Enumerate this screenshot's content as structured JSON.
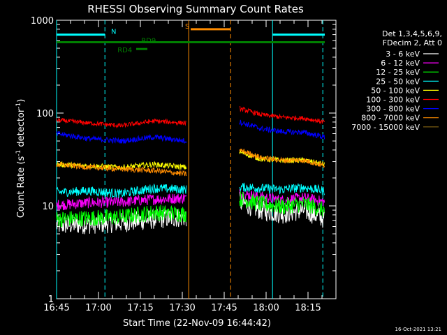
{
  "chart_data": {
    "type": "line",
    "title": "RHESSI Observing Summary Count Rates",
    "xlabel": "Start Time (22-Nov-09 16:44:42)",
    "ylabel": "Count Rate (s⁻¹ detector⁻¹)",
    "ylabel_parts": {
      "main": "Count Rate (s",
      "sup1": "-1",
      "mid": " detector",
      "sup2": "-1",
      "end": ")"
    },
    "y_scale": "log",
    "ylim": [
      1,
      1000
    ],
    "xlim_minutes": [
      0,
      100
    ],
    "y_ticks": [
      {
        "value": 1,
        "label": "1"
      },
      {
        "value": 10,
        "label": "10"
      },
      {
        "value": 100,
        "label": "100"
      },
      {
        "value": 1000,
        "label": "1000"
      }
    ],
    "x_ticks": [
      {
        "minutes": 0,
        "label": "16:45"
      },
      {
        "minutes": 15,
        "label": "17:00"
      },
      {
        "minutes": 30,
        "label": "17:15"
      },
      {
        "minutes": 45,
        "label": "17:30"
      },
      {
        "minutes": 60,
        "label": "17:45"
      },
      {
        "minutes": 75,
        "label": "18:00"
      },
      {
        "minutes": 90,
        "label": "18:15"
      }
    ],
    "legend_header": [
      "Det 1,3,4,5,6,9,",
      "FDecim 2, Att 0"
    ],
    "series": [
      {
        "name": "3 - 6 keV",
        "color": "#ffffff",
        "pre": [
          6.2,
          6.4,
          6.6,
          7.2,
          7.6
        ],
        "post": [
          11.0,
          9.0,
          8.2,
          9.0,
          7.2
        ],
        "noise": 0.11
      },
      {
        "name": "6 - 12 keV",
        "color": "#ff00ff",
        "pre": [
          10.2,
          10.8,
          11.0,
          11.8,
          12.2
        ],
        "post": [
          13.5,
          12.5,
          11.5,
          12.2,
          11.0
        ],
        "noise": 0.06
      },
      {
        "name": "12 - 25 keV",
        "color": "#00ff00",
        "pre": [
          7.2,
          7.4,
          7.6,
          8.5,
          8.2
        ],
        "post": [
          12.0,
          10.5,
          9.8,
          10.5,
          9.0
        ],
        "noise": 0.09
      },
      {
        "name": "25 - 50 keV",
        "color": "#00ffff",
        "pre": [
          14.0,
          14.5,
          13.5,
          15.5,
          15.0
        ],
        "post": [
          16.0,
          15.5,
          15.0,
          15.8,
          14.5
        ],
        "noise": 0.05
      },
      {
        "name": "50 - 100 keV",
        "color": "#ffff00",
        "pre": [
          28,
          27,
          26,
          28,
          26
        ],
        "post": [
          38,
          32,
          31,
          31,
          28
        ],
        "noise": 0.03
      },
      {
        "name": "100 - 300 keV",
        "color": "#ff0000",
        "pre": [
          84,
          78,
          73,
          82,
          78
        ],
        "post": [
          112,
          96,
          90,
          88,
          80
        ],
        "noise": 0.025
      },
      {
        "name": "300 - 800 keV",
        "color": "#0000ff",
        "pre": [
          60,
          53,
          50,
          55,
          50
        ],
        "post": [
          80,
          68,
          63,
          62,
          55
        ],
        "noise": 0.03
      },
      {
        "name": "800 - 7000 keV",
        "color": "#ff8c00",
        "pre": [
          28,
          26,
          25,
          24,
          22
        ],
        "post": [
          40,
          33,
          31,
          31,
          27
        ],
        "noise": 0.03
      },
      {
        "name": "7000 - 15000 keV",
        "color": "#8b6914",
        "pre": [],
        "post": [],
        "noise": 0
      }
    ],
    "vertical_markers": [
      {
        "minutes": 0,
        "color": "#00ffff",
        "style": "solid"
      },
      {
        "minutes": 17.3,
        "color": "#00ffff",
        "style": "dashed"
      },
      {
        "minutes": 47.3,
        "color": "#ff8c00",
        "style": "solid"
      },
      {
        "minutes": 62.3,
        "color": "#ff8c00",
        "style": "dashed"
      },
      {
        "minutes": 77.3,
        "color": "#00ffff",
        "style": "solid"
      },
      {
        "minutes": 95.3,
        "color": "#00ffff",
        "style": "dashed"
      }
    ],
    "flag_bars": [
      {
        "label": "N",
        "color": "#00ffff",
        "start": 0,
        "end": 17.3,
        "y": 700,
        "label_at": 19.5
      },
      {
        "label": "N",
        "color": "#00ffff",
        "start": 77.3,
        "end": 96,
        "y": 700,
        "label_at": null
      },
      {
        "label": "S",
        "color": "#ff8c00",
        "start": 48,
        "end": 62.3,
        "y": 800,
        "label_at": 46.0
      },
      {
        "label": "RD9",
        "color": "#008000",
        "start": 0,
        "end": 96,
        "y": 580,
        "label_at": 30.3
      },
      {
        "label": "RD4",
        "color": "#008000",
        "start": 28.5,
        "end": 32.5,
        "y": 490,
        "label_at": 21.8
      }
    ],
    "data_gap_minutes": [
      48,
      65.5
    ],
    "data_end_minutes": 96
  },
  "footer_timestamp": "16-Oct-2021 13:21"
}
